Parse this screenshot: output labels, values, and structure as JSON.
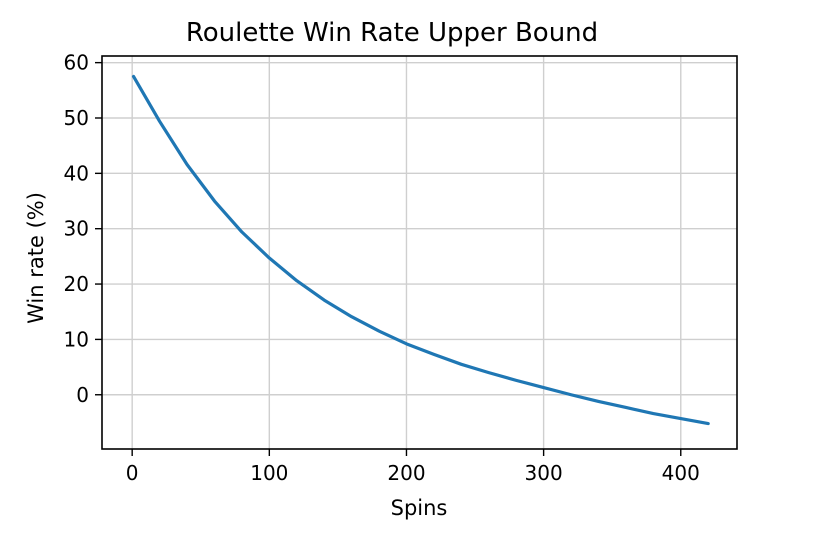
{
  "chart_data": {
    "type": "line",
    "title": "Roulette Win Rate Upper Bound",
    "xlabel": "Spins",
    "ylabel": "Win rate (%)",
    "xlim": [
      -22,
      441
    ],
    "ylim": [
      -9.8,
      61.2
    ],
    "xticks": [
      0,
      100,
      200,
      300,
      400
    ],
    "yticks": [
      0,
      10,
      20,
      30,
      40,
      50,
      60
    ],
    "grid": true,
    "series": [
      {
        "color": "#1f77b4",
        "x": [
          1,
          20,
          40,
          60,
          80,
          100,
          120,
          140,
          160,
          180,
          200,
          220,
          240,
          260,
          280,
          300,
          320,
          340,
          360,
          380,
          400,
          420
        ],
        "y": [
          57.5,
          49.4,
          41.6,
          35.0,
          29.4,
          24.7,
          20.6,
          17.1,
          14.1,
          11.5,
          9.2,
          7.3,
          5.5,
          4.0,
          2.6,
          1.3,
          0.0,
          -1.2,
          -2.3,
          -3.4,
          -4.3,
          -5.2
        ]
      }
    ]
  }
}
